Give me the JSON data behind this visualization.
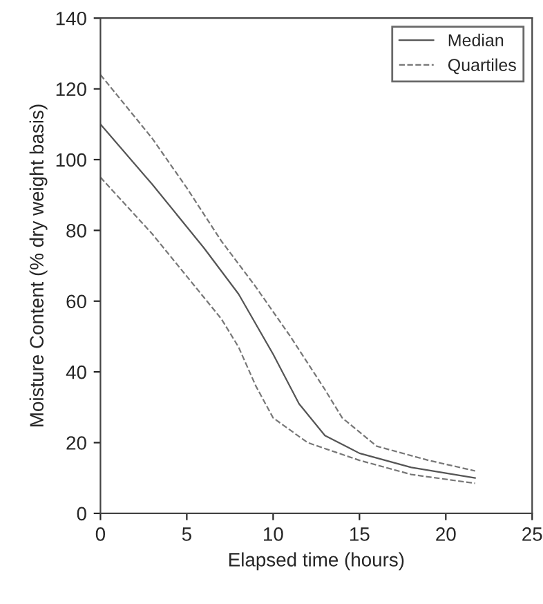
{
  "chart_data": {
    "type": "line",
    "xlabel": "Elapsed time (hours)",
    "ylabel": "Moisture Content (% dry weight basis)",
    "series": [
      {
        "name": "Median",
        "color": "#555555",
        "line_style": "solid",
        "x": [
          0,
          3,
          5,
          6,
          8,
          10,
          11.5,
          13,
          15,
          18,
          21.7
        ],
        "values": [
          110,
          93,
          81,
          75,
          62,
          45,
          31,
          22,
          17,
          13,
          10
        ]
      },
      {
        "name": "Quartiles",
        "color": "#777777",
        "line_style": "dashed",
        "x": [
          0,
          3,
          5,
          7,
          9,
          11,
          13,
          14,
          16,
          19,
          21.7
        ],
        "values": [
          124,
          106,
          92,
          77,
          64,
          50,
          35,
          27,
          19,
          15,
          12
        ]
      },
      {
        "color": "#777777",
        "line_style": "dashed",
        "x": [
          0,
          3,
          5,
          7,
          8,
          9,
          10,
          12,
          15,
          18,
          21.7
        ],
        "values": [
          95,
          79,
          67,
          55,
          47,
          36,
          27,
          20,
          15,
          11,
          8.5
        ]
      }
    ],
    "xlim": [
      0,
      25
    ],
    "xticks": [
      0,
      5,
      10,
      15,
      20,
      25
    ],
    "ylim": [
      0,
      140
    ],
    "yticks": [
      0,
      20,
      40,
      60,
      80,
      100,
      120,
      140
    ],
    "grid": false,
    "legend": "top right",
    "marker": "none"
  }
}
